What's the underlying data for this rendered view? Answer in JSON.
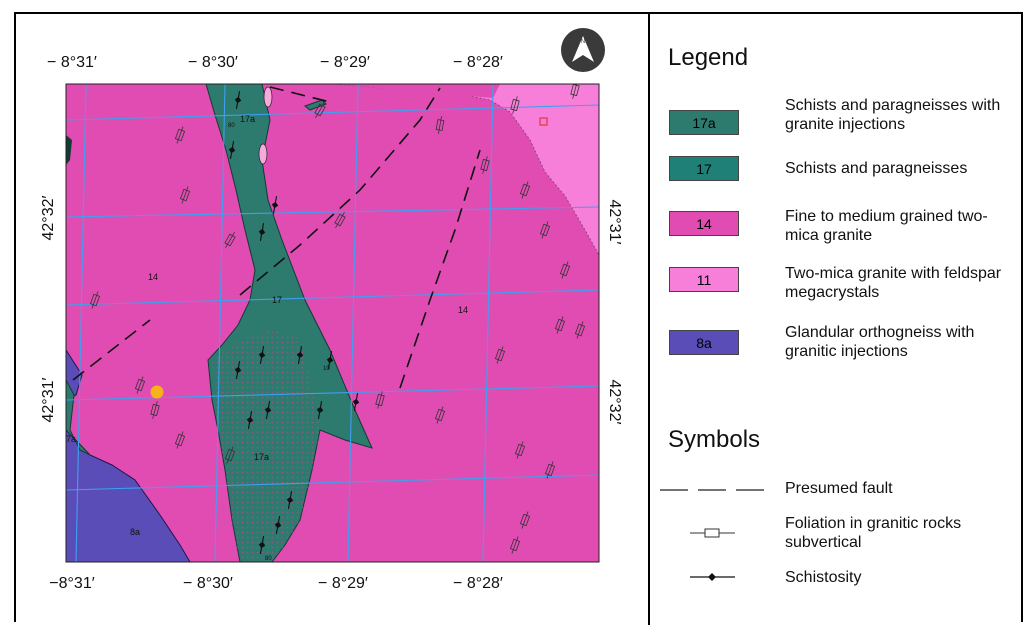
{
  "map": {
    "lon_top_labels": [
      "− 8°31′",
      "− 8°30′",
      "− 8°29′",
      "− 8°28′"
    ],
    "lon_bottom_labels": [
      "−8°31′",
      "− 8°30′",
      "− 8°29′",
      "− 8°28′"
    ],
    "lat_left_labels": [
      "42°32′",
      "42°31′"
    ],
    "lat_right_labels": [
      "42°31′",
      "42°32′"
    ],
    "unit_labels": [
      "17a",
      "14",
      "17",
      "14",
      "17a",
      "10",
      "8a",
      "7a",
      "80",
      "80"
    ],
    "north_label": "N",
    "colors": {
      "granite_fine": "#e04cb2",
      "granite_mega": "#f77fd9",
      "schist": "#2d7a6e",
      "orthogneiss": "#5b4db8",
      "grid": "#3fa0ef",
      "point": "#f7b21b"
    }
  },
  "legend": {
    "title": "Legend",
    "items": [
      {
        "code": "17a",
        "label": "Schists and paragneisses with granite injections",
        "color": "#2d7a6e"
      },
      {
        "code": "17",
        "label": "Schists and paragneisses",
        "color": "#1f8078"
      },
      {
        "code": "14",
        "label": "Fine to medium grained two-mica granite",
        "color": "#e04cb2"
      },
      {
        "code": "11",
        "label": "Two-mica granite with feldspar megacrystals",
        "color": "#f77fd9"
      },
      {
        "code": "8a",
        "label": "Glandular orthogneiss with granitic injections",
        "color": "#5b4db8"
      }
    ]
  },
  "symbols": {
    "title": "Symbols",
    "items": [
      {
        "label": "Presumed fault",
        "icon": "dashed-line-icon"
      },
      {
        "label": "Foliation in granitic rocks subvertical",
        "icon": "foliation-symbol-icon"
      },
      {
        "label": "Schistosity",
        "icon": "schistosity-symbol-icon"
      }
    ]
  }
}
